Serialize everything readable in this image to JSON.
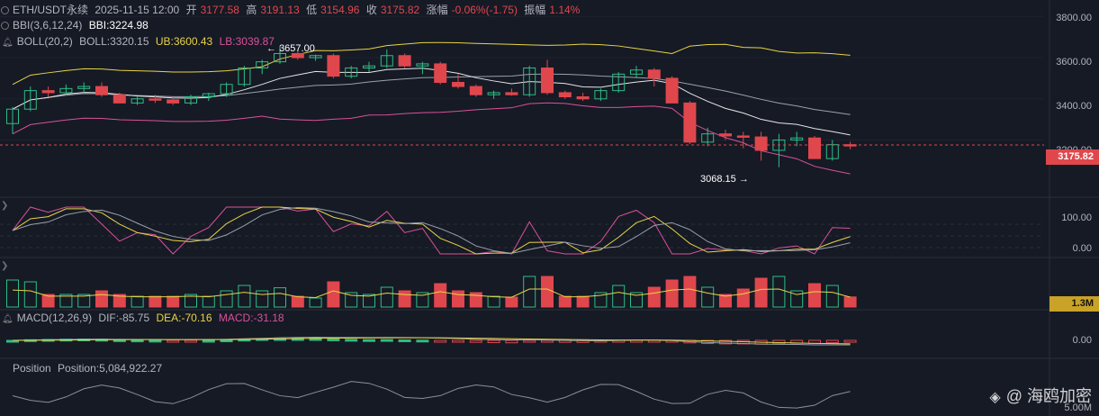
{
  "header": {
    "symbol": "ETH/USDT永续",
    "datetime": "2025-11-15 12:00",
    "open_label": "开",
    "open": "3177.58",
    "high_label": "高",
    "high": "3191.13",
    "low_label": "低",
    "low": "3154.96",
    "close_label": "收",
    "close": "3175.82",
    "change_label": "涨幅",
    "change": "-0.06%(-1.75)",
    "amp_label": "振幅",
    "amp": "1.14%"
  },
  "bbi": {
    "name": "BBI(3,6,12,24)",
    "value": "BBI:3224.98"
  },
  "boll": {
    "name": "BOLL(20,2)",
    "mid": "BOLL:3320.15",
    "ub": "UB:3600.43",
    "lb": "LB:3039.87"
  },
  "price_axis": {
    "ticks": [
      "3800.00",
      "3600.00",
      "3400.00",
      "3200.00"
    ],
    "last_price_tag": "3175.82"
  },
  "annotations": {
    "high": "3657.00",
    "low": "3068.15"
  },
  "kdj_panel": {
    "ticks": [
      "100.00",
      "0.00"
    ]
  },
  "volume_panel": {
    "tag": "1.3M"
  },
  "macd": {
    "name": "MACD(12,26,9)",
    "dif": "DIF:-85.75",
    "dea": "DEA:-70.16",
    "macd": "MACD:-31.18",
    "tick": "0.00"
  },
  "position": {
    "name": "Position",
    "value": "Position:5,084,922.27",
    "tick": "5.00M"
  },
  "watermark": {
    "logo": "◈",
    "text": "@ 海鸥加密"
  },
  "colors": {
    "up": "#e0474d",
    "down": "#2ebd85",
    "background": "#161a25"
  },
  "chart_data": {
    "type": "candlestick",
    "y_range": [
      2940,
      3880
    ],
    "candles": [
      {
        "o": 3280,
        "h": 3360,
        "l": 3230,
        "c": 3350
      },
      {
        "o": 3350,
        "h": 3460,
        "l": 3340,
        "c": 3440
      },
      {
        "o": 3440,
        "h": 3460,
        "l": 3410,
        "c": 3430
      },
      {
        "o": 3430,
        "h": 3470,
        "l": 3420,
        "c": 3450
      },
      {
        "o": 3450,
        "h": 3480,
        "l": 3430,
        "c": 3460
      },
      {
        "o": 3460,
        "h": 3480,
        "l": 3410,
        "c": 3420
      },
      {
        "o": 3420,
        "h": 3430,
        "l": 3380,
        "c": 3380
      },
      {
        "o": 3380,
        "h": 3410,
        "l": 3370,
        "c": 3400
      },
      {
        "o": 3400,
        "h": 3420,
        "l": 3380,
        "c": 3395
      },
      {
        "o": 3395,
        "h": 3410,
        "l": 3370,
        "c": 3380
      },
      {
        "o": 3380,
        "h": 3420,
        "l": 3370,
        "c": 3410
      },
      {
        "o": 3410,
        "h": 3430,
        "l": 3390,
        "c": 3425
      },
      {
        "o": 3425,
        "h": 3480,
        "l": 3410,
        "c": 3470
      },
      {
        "o": 3470,
        "h": 3560,
        "l": 3460,
        "c": 3550
      },
      {
        "o": 3550,
        "h": 3590,
        "l": 3520,
        "c": 3580
      },
      {
        "o": 3580,
        "h": 3657,
        "l": 3570,
        "c": 3620
      },
      {
        "o": 3620,
        "h": 3630,
        "l": 3590,
        "c": 3600
      },
      {
        "o": 3600,
        "h": 3615,
        "l": 3585,
        "c": 3610
      },
      {
        "o": 3610,
        "h": 3620,
        "l": 3500,
        "c": 3510
      },
      {
        "o": 3510,
        "h": 3560,
        "l": 3500,
        "c": 3550
      },
      {
        "o": 3550,
        "h": 3580,
        "l": 3530,
        "c": 3560
      },
      {
        "o": 3560,
        "h": 3640,
        "l": 3550,
        "c": 3610
      },
      {
        "o": 3610,
        "h": 3620,
        "l": 3550,
        "c": 3560
      },
      {
        "o": 3560,
        "h": 3580,
        "l": 3520,
        "c": 3570
      },
      {
        "o": 3570,
        "h": 3580,
        "l": 3470,
        "c": 3480
      },
      {
        "o": 3480,
        "h": 3520,
        "l": 3450,
        "c": 3460
      },
      {
        "o": 3460,
        "h": 3470,
        "l": 3410,
        "c": 3420
      },
      {
        "o": 3420,
        "h": 3440,
        "l": 3400,
        "c": 3430
      },
      {
        "o": 3430,
        "h": 3450,
        "l": 3415,
        "c": 3420
      },
      {
        "o": 3420,
        "h": 3560,
        "l": 3410,
        "c": 3550
      },
      {
        "o": 3550,
        "h": 3590,
        "l": 3420,
        "c": 3430
      },
      {
        "o": 3430,
        "h": 3440,
        "l": 3400,
        "c": 3410
      },
      {
        "o": 3410,
        "h": 3430,
        "l": 3390,
        "c": 3400
      },
      {
        "o": 3400,
        "h": 3450,
        "l": 3390,
        "c": 3440
      },
      {
        "o": 3440,
        "h": 3530,
        "l": 3430,
        "c": 3520
      },
      {
        "o": 3520,
        "h": 3560,
        "l": 3500,
        "c": 3540
      },
      {
        "o": 3540,
        "h": 3550,
        "l": 3460,
        "c": 3500
      },
      {
        "o": 3500,
        "h": 3510,
        "l": 3380,
        "c": 3380
      },
      {
        "o": 3380,
        "h": 3390,
        "l": 3180,
        "c": 3190
      },
      {
        "o": 3190,
        "h": 3260,
        "l": 3170,
        "c": 3230
      },
      {
        "o": 3230,
        "h": 3250,
        "l": 3200,
        "c": 3220
      },
      {
        "o": 3220,
        "h": 3240,
        "l": 3160,
        "c": 3215
      },
      {
        "o": 3215,
        "h": 3240,
        "l": 3100,
        "c": 3150
      },
      {
        "o": 3150,
        "h": 3230,
        "l": 3068.15,
        "c": 3200
      },
      {
        "o": 3200,
        "h": 3240,
        "l": 3170,
        "c": 3210
      },
      {
        "o": 3210,
        "h": 3220,
        "l": 3110,
        "c": 3110
      },
      {
        "o": 3110,
        "h": 3200,
        "l": 3100,
        "c": 3177.58
      },
      {
        "o": 3177.58,
        "h": 3191.13,
        "l": 3154.96,
        "c": 3175.82
      }
    ]
  }
}
